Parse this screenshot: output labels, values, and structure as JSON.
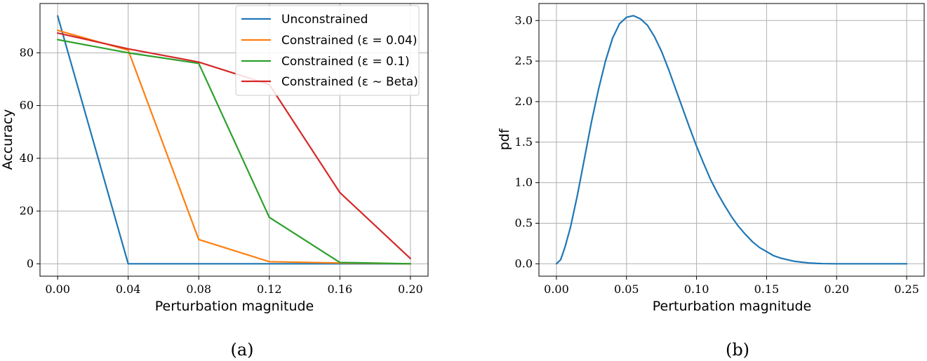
{
  "chart_data": [
    {
      "type": "line",
      "caption": "(a)",
      "xlabel": "Perturbation magnitude",
      "ylabel": "Accuracy",
      "xticks": [
        "0.00",
        "0.04",
        "0.08",
        "0.12",
        "0.16",
        "0.20"
      ],
      "yticks": [
        "0",
        "20",
        "40",
        "60",
        "80"
      ],
      "xlim": [
        -0.01,
        0.21
      ],
      "ylim": [
        -4.7,
        98.7
      ],
      "grid": true,
      "legend": "top-right",
      "x": [
        0.0,
        0.04,
        0.08,
        0.12,
        0.16,
        0.2
      ],
      "series": [
        {
          "name": "Unconstrained",
          "color": "#1f77b4",
          "values": [
            94.0,
            0.0,
            0.0,
            0.0,
            0.0,
            0.0
          ]
        },
        {
          "name": "Constrained (ε = 0.04)",
          "color": "#ff7f0e",
          "values": [
            88.5,
            81.0,
            9.2,
            0.8,
            0.3,
            0.0
          ]
        },
        {
          "name": "Constrained (ε = 0.1)",
          "color": "#2ca02c",
          "values": [
            85.0,
            80.0,
            76.0,
            17.6,
            0.5,
            0.0
          ]
        },
        {
          "name": "Constrained (ε ∼ Beta)",
          "color": "#d62728",
          "values": [
            87.5,
            81.5,
            76.5,
            68.0,
            27.0,
            2.0
          ]
        }
      ]
    },
    {
      "type": "line",
      "caption": "(b)",
      "xlabel": "Perturbation magnitude",
      "ylabel": "pdf",
      "xticks": [
        "0.00",
        "0.05",
        "0.10",
        "0.15",
        "0.20",
        "0.25"
      ],
      "yticks": [
        "0.0",
        "0.5",
        "1.0",
        "1.5",
        "2.0",
        "2.5",
        "3.0"
      ],
      "xlim": [
        -0.0125,
        0.2625
      ],
      "ylim": [
        -0.153,
        3.21
      ],
      "grid": true,
      "series": [
        {
          "color": "#1f77b4",
          "x": [
            0.0,
            0.003,
            0.006,
            0.01,
            0.015,
            0.02,
            0.025,
            0.03,
            0.035,
            0.04,
            0.045,
            0.05,
            0.055,
            0.06,
            0.065,
            0.07,
            0.075,
            0.08,
            0.085,
            0.09,
            0.095,
            0.1,
            0.105,
            0.11,
            0.115,
            0.12,
            0.125,
            0.13,
            0.135,
            0.14,
            0.145,
            0.15,
            0.155,
            0.16,
            0.165,
            0.17,
            0.175,
            0.18,
            0.185,
            0.19,
            0.195,
            0.2,
            0.21,
            0.22,
            0.23,
            0.24,
            0.25
          ],
          "values": [
            0.0,
            0.05,
            0.2,
            0.45,
            0.85,
            1.3,
            1.75,
            2.15,
            2.5,
            2.78,
            2.96,
            3.04,
            3.06,
            3.02,
            2.94,
            2.8,
            2.62,
            2.4,
            2.16,
            1.92,
            1.68,
            1.45,
            1.24,
            1.04,
            0.87,
            0.72,
            0.58,
            0.46,
            0.36,
            0.27,
            0.2,
            0.15,
            0.1,
            0.07,
            0.05,
            0.03,
            0.02,
            0.01,
            0.005,
            0.002,
            0.001,
            0.0,
            0.0,
            0.0,
            0.0,
            0.0,
            0.0
          ]
        }
      ]
    }
  ]
}
